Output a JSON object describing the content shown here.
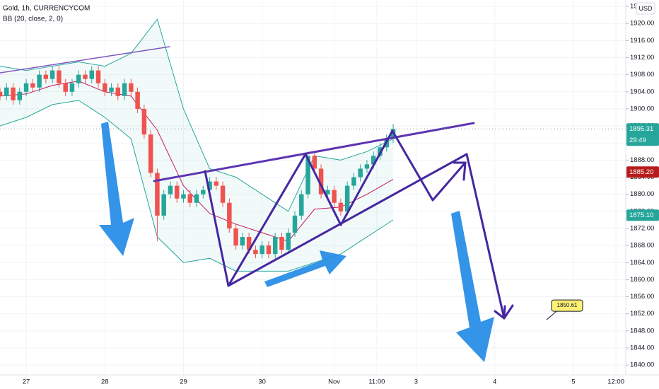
{
  "chart_data": {
    "type": "candlestick",
    "title": "Gold, 1h, CURRENCYCOM",
    "indicator": "BB (20, close, 2, 0)",
    "currency": "USD",
    "countdown": "29:49",
    "callout": 1850.61,
    "up_color": "#26a69a",
    "down_color": "#ef5350",
    "xlim": [
      -8,
      183
    ],
    "xticks": [
      {
        "value": 0,
        "label": "27"
      },
      {
        "value": 24,
        "label": "28"
      },
      {
        "value": 48,
        "label": "29"
      },
      {
        "value": 72,
        "label": "30"
      },
      {
        "value": 94,
        "label": "Nov"
      },
      {
        "value": 107,
        "label": "11:00"
      },
      {
        "value": 119,
        "label": "3"
      },
      {
        "value": 143,
        "label": "4"
      },
      {
        "value": 167,
        "label": "5"
      },
      {
        "value": 180,
        "label": "12:00"
      }
    ],
    "ylim": [
      1837.7,
      1925.5
    ],
    "yticks": [
      {
        "value": 1840,
        "label": "1840.00"
      },
      {
        "value": 1844,
        "label": "1844.00"
      },
      {
        "value": 1848,
        "label": "1848.00"
      },
      {
        "value": 1852,
        "label": "1852.00"
      },
      {
        "value": 1856,
        "label": "1856.00"
      },
      {
        "value": 1860,
        "label": "1860.00"
      },
      {
        "value": 1864,
        "label": "1864.00"
      },
      {
        "value": 1868,
        "label": "1868.00"
      },
      {
        "value": 1872,
        "label": "1872.00"
      },
      {
        "value": 1876,
        "label": "1876.00"
      },
      {
        "value": 1880,
        "label": "1880.00"
      },
      {
        "value": 1884,
        "label": "1884.00"
      },
      {
        "value": 1888,
        "label": "1888.00"
      },
      {
        "value": 1892,
        "label": "1892.00"
      },
      {
        "value": 1896,
        "label": "1896.00"
      },
      {
        "value": 1900,
        "label": "1900.00"
      },
      {
        "value": 1904,
        "label": "1904.00"
      },
      {
        "value": 1908,
        "label": "1908.00"
      },
      {
        "value": 1912,
        "label": "1912.00"
      },
      {
        "value": 1916,
        "label": "1916.00"
      },
      {
        "value": 1920,
        "label": "1920.00"
      },
      {
        "value": 1924,
        "label": "1924.00"
      }
    ],
    "price_labels": [
      {
        "value": 1895.31,
        "label": "1895.31",
        "color": "#26a69a"
      },
      {
        "value": 1885.2,
        "label": "1885.20",
        "color": "#b71c1c"
      },
      {
        "value": 1875.1,
        "label": "1875.10",
        "color": "#26a69a"
      }
    ],
    "candles": {
      "x": [
        -8,
        -6,
        -4,
        -2,
        0,
        2,
        4,
        6,
        8,
        10,
        12,
        14,
        16,
        18,
        20,
        22,
        24,
        26,
        28,
        30,
        32,
        34,
        36,
        38,
        40,
        42,
        44,
        46,
        48,
        50,
        52,
        54,
        56,
        58,
        60,
        62,
        64,
        66,
        68,
        70,
        72,
        74,
        76,
        78,
        80,
        82,
        84,
        86,
        88,
        90,
        92,
        94,
        96,
        98,
        100,
        102,
        104,
        106,
        108,
        110,
        112
      ],
      "open": [
        1904,
        1903,
        1905,
        1902,
        1904,
        1906,
        1905,
        1908,
        1907,
        1909,
        1906,
        1904,
        1906,
        1908,
        1907,
        1909,
        1906,
        1904,
        1905,
        1903,
        1906,
        1904,
        1900,
        1894,
        1885,
        1875,
        1880,
        1882,
        1879,
        1880,
        1878,
        1880,
        1881,
        1883,
        1882,
        1878,
        1872,
        1868,
        1870,
        1867,
        1866,
        1868,
        1866,
        1870,
        1867,
        1871,
        1875,
        1880,
        1889,
        1886,
        1880,
        1881,
        1878,
        1876,
        1882,
        1884,
        1886,
        1887,
        1889,
        1891,
        1893
      ],
      "high": [
        1905,
        1906,
        1906,
        1905,
        1907,
        1907,
        1909,
        1909,
        1910,
        1910,
        1907,
        1907,
        1909,
        1909,
        1910,
        1910,
        1907,
        1906,
        1906,
        1907,
        1907,
        1905,
        1901,
        1895,
        1886,
        1881,
        1883,
        1883,
        1881,
        1881,
        1881,
        1882,
        1884,
        1884,
        1883,
        1879,
        1873,
        1871,
        1871,
        1868,
        1869,
        1869,
        1871,
        1871,
        1872,
        1876,
        1881,
        1890,
        1890,
        1887,
        1882,
        1882,
        1879,
        1883,
        1885,
        1887,
        1888,
        1890,
        1892,
        1894,
        1896.5
      ],
      "low": [
        1902,
        1902,
        1901,
        1901,
        1903,
        1904,
        1904,
        1906,
        1906,
        1905,
        1903,
        1903,
        1905,
        1906,
        1906,
        1905,
        1903,
        1903,
        1902,
        1902,
        1903,
        1899,
        1893,
        1884,
        1869,
        1874,
        1879,
        1878,
        1878,
        1877,
        1877,
        1879,
        1880,
        1881,
        1877,
        1871,
        1867,
        1867,
        1866,
        1865,
        1865,
        1865,
        1865,
        1866,
        1866,
        1870,
        1874,
        1879,
        1885,
        1879,
        1879,
        1877,
        1875,
        1875,
        1881,
        1883,
        1885,
        1886,
        1888,
        1890,
        1892
      ],
      "close": [
        1903,
        1905,
        1902,
        1904,
        1906,
        1905,
        1908,
        1907,
        1909,
        1906,
        1904,
        1906,
        1908,
        1907,
        1909,
        1906,
        1904,
        1905,
        1903,
        1906,
        1904,
        1900,
        1894,
        1885,
        1875,
        1880,
        1882,
        1879,
        1880,
        1878,
        1880,
        1881,
        1883,
        1882,
        1878,
        1872,
        1868,
        1870,
        1867,
        1866,
        1868,
        1866,
        1870,
        1867,
        1871,
        1875,
        1880,
        1889,
        1886,
        1880,
        1881,
        1878,
        1876,
        1882,
        1884,
        1886,
        1887,
        1889,
        1891,
        1893,
        1895.31
      ]
    },
    "bb": {
      "x": [
        -8,
        0,
        8,
        16,
        24,
        32,
        40,
        48,
        56,
        64,
        72,
        80,
        88,
        96,
        104,
        112
      ],
      "upper": [
        1910,
        1909,
        1910,
        1911,
        1910,
        1913,
        1921,
        1900,
        1886,
        1884,
        1880,
        1876,
        1889,
        1888,
        1890,
        1893
      ],
      "middle": [
        1903,
        1903.5,
        1905.5,
        1906.5,
        1904,
        1903,
        1895,
        1882,
        1875.5,
        1873,
        1871,
        1869,
        1876.5,
        1877,
        1880,
        1883.5
      ],
      "lower": [
        1896,
        1898,
        1901,
        1902,
        1898,
        1893,
        1870,
        1864,
        1865,
        1862,
        1862,
        1862,
        1864,
        1866,
        1870,
        1874
      ],
      "band_color": "#26a69a",
      "middle_color": "#c2185b"
    }
  }
}
